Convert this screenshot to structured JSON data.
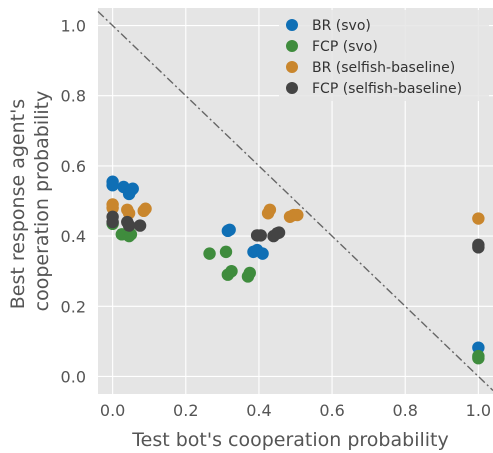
{
  "chart_data": {
    "type": "scatter",
    "title": "",
    "xlabel": "Test bot's cooperation probability",
    "ylabel_lines": [
      "Best response agent's",
      "cooperation probability"
    ],
    "xlim": [
      -0.04,
      1.04
    ],
    "ylim": [
      -0.05,
      1.05
    ],
    "xticks": [
      0.0,
      0.2,
      0.4,
      0.6,
      0.8,
      1.0
    ],
    "yticks": [
      0.0,
      0.2,
      0.4,
      0.6,
      0.8,
      1.0
    ],
    "xtick_labels": [
      "0.0",
      "0.2",
      "0.4",
      "0.6",
      "0.8",
      "1.0"
    ],
    "ytick_labels": [
      "0.0",
      "0.2",
      "0.4",
      "0.6",
      "0.8",
      "1.0"
    ],
    "grid": true,
    "background": "#e5e5e5",
    "grid_color": "#ffffff",
    "legend_position": "top-right",
    "reference_line": {
      "from": [
        -0.04,
        1.04
      ],
      "to": [
        1.04,
        -0.04
      ],
      "style": "dash-dot",
      "color": "#666666"
    },
    "series": [
      {
        "name": "BR (svo)",
        "color": "#0f6fb5",
        "points": [
          [
            0.0,
            0.555
          ],
          [
            0.0,
            0.545
          ],
          [
            0.03,
            0.54
          ],
          [
            0.05,
            0.53
          ],
          [
            0.055,
            0.535
          ],
          [
            0.045,
            0.52
          ],
          [
            0.315,
            0.415
          ],
          [
            0.32,
            0.418
          ],
          [
            0.385,
            0.355
          ],
          [
            0.395,
            0.36
          ],
          [
            0.41,
            0.35
          ],
          [
            1.0,
            0.082
          ]
        ]
      },
      {
        "name": "FCP (svo)",
        "color": "#3f8c3d",
        "points": [
          [
            0.0,
            0.435
          ],
          [
            0.025,
            0.405
          ],
          [
            0.045,
            0.4
          ],
          [
            0.05,
            0.405
          ],
          [
            0.265,
            0.35
          ],
          [
            0.31,
            0.355
          ],
          [
            0.315,
            0.29
          ],
          [
            0.325,
            0.3
          ],
          [
            0.37,
            0.285
          ],
          [
            0.375,
            0.295
          ],
          [
            1.0,
            0.058
          ],
          [
            1.0,
            0.052
          ]
        ]
      },
      {
        "name": "BR (selfish-baseline)",
        "color": "#c9862d",
        "points": [
          [
            0.0,
            0.49
          ],
          [
            0.0,
            0.48
          ],
          [
            0.04,
            0.475
          ],
          [
            0.045,
            0.465
          ],
          [
            0.085,
            0.472
          ],
          [
            0.09,
            0.478
          ],
          [
            0.425,
            0.465
          ],
          [
            0.43,
            0.475
          ],
          [
            0.485,
            0.455
          ],
          [
            0.495,
            0.46
          ],
          [
            0.505,
            0.46
          ],
          [
            1.0,
            0.45
          ]
        ]
      },
      {
        "name": "FCP (selfish-baseline)",
        "color": "#444444",
        "points": [
          [
            0.0,
            0.455
          ],
          [
            0.0,
            0.44
          ],
          [
            0.04,
            0.44
          ],
          [
            0.045,
            0.43
          ],
          [
            0.075,
            0.43
          ],
          [
            0.395,
            0.402
          ],
          [
            0.405,
            0.402
          ],
          [
            0.44,
            0.4
          ],
          [
            0.45,
            0.408
          ],
          [
            0.455,
            0.41
          ],
          [
            1.0,
            0.375
          ],
          [
            1.0,
            0.368
          ]
        ]
      }
    ]
  }
}
